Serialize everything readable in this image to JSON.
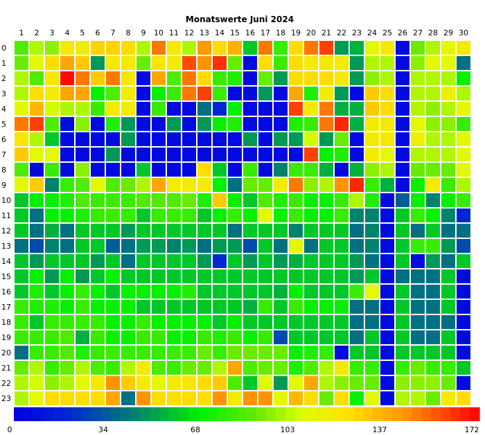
{
  "chart_data": {
    "type": "heatmap",
    "title": "Monatswerte Juni 2024",
    "x": [
      1,
      2,
      3,
      4,
      5,
      6,
      7,
      8,
      9,
      10,
      11,
      12,
      13,
      14,
      15,
      16,
      17,
      18,
      19,
      20,
      21,
      22,
      23,
      24,
      25,
      26,
      27,
      28,
      29,
      30
    ],
    "y": [
      0,
      1,
      2,
      3,
      4,
      5,
      6,
      7,
      8,
      9,
      10,
      11,
      12,
      13,
      14,
      15,
      16,
      17,
      18,
      19,
      20,
      21,
      22,
      23
    ],
    "value_range": [
      0,
      172
    ],
    "colorbar_ticks": [
      0,
      34,
      68,
      103,
      137,
      172
    ],
    "grid": true,
    "values": [
      [
        85,
        100,
        95,
        120,
        118,
        128,
        128,
        125,
        100,
        150,
        120,
        100,
        143,
        125,
        137,
        60,
        150,
        80,
        125,
        150,
        160,
        50,
        55,
        110,
        120,
        5,
        90,
        100,
        110,
        118
      ],
      [
        90,
        110,
        125,
        140,
        130,
        50,
        120,
        118,
        90,
        120,
        118,
        158,
        145,
        163,
        90,
        5,
        125,
        80,
        125,
        118,
        120,
        118,
        50,
        100,
        100,
        5,
        95,
        110,
        110,
        40
      ],
      [
        100,
        85,
        120,
        170,
        150,
        130,
        150,
        120,
        5,
        140,
        85,
        150,
        125,
        80,
        75,
        5,
        90,
        50,
        125,
        125,
        125,
        120,
        50,
        95,
        100,
        5,
        100,
        100,
        100,
        70
      ],
      [
        100,
        125,
        118,
        140,
        140,
        70,
        85,
        118,
        5,
        70,
        80,
        150,
        160,
        80,
        5,
        5,
        50,
        5,
        140,
        75,
        118,
        50,
        5,
        130,
        125,
        5,
        100,
        100,
        115,
        100
      ],
      [
        110,
        135,
        105,
        100,
        100,
        80,
        118,
        118,
        5,
        80,
        5,
        5,
        40,
        20,
        70,
        5,
        5,
        5,
        160,
        118,
        150,
        55,
        55,
        130,
        125,
        5,
        100,
        95,
        100,
        110
      ],
      [
        150,
        160,
        85,
        5,
        95,
        5,
        75,
        50,
        5,
        5,
        50,
        5,
        50,
        70,
        75,
        5,
        5,
        5,
        75,
        80,
        150,
        165,
        55,
        118,
        120,
        5,
        110,
        95,
        95,
        80
      ],
      [
        120,
        100,
        60,
        5,
        5,
        5,
        5,
        50,
        5,
        5,
        5,
        5,
        5,
        5,
        5,
        50,
        5,
        50,
        50,
        105,
        50,
        90,
        5,
        118,
        120,
        5,
        115,
        100,
        100,
        110
      ],
      [
        130,
        110,
        110,
        5,
        5,
        5,
        50,
        5,
        5,
        5,
        5,
        5,
        5,
        5,
        5,
        5,
        5,
        5,
        5,
        160,
        70,
        75,
        5,
        118,
        110,
        5,
        100,
        100,
        100,
        110
      ],
      [
        85,
        5,
        80,
        5,
        95,
        5,
        5,
        5,
        60,
        5,
        5,
        5,
        125,
        60,
        5,
        80,
        5,
        45,
        80,
        80,
        55,
        5,
        55,
        95,
        100,
        5,
        90,
        90,
        90,
        110
      ],
      [
        110,
        130,
        45,
        80,
        85,
        110,
        85,
        90,
        100,
        140,
        118,
        118,
        118,
        70,
        40,
        90,
        90,
        118,
        150,
        95,
        100,
        145,
        165,
        80,
        55,
        5,
        70,
        118,
        80,
        100
      ],
      [
        60,
        70,
        70,
        75,
        85,
        80,
        80,
        80,
        85,
        85,
        85,
        90,
        75,
        130,
        70,
        60,
        85,
        75,
        80,
        70,
        70,
        80,
        100,
        75,
        5,
        35,
        70,
        45,
        70,
        80
      ],
      [
        60,
        40,
        70,
        70,
        75,
        80,
        80,
        80,
        60,
        80,
        80,
        80,
        60,
        70,
        80,
        70,
        110,
        70,
        80,
        70,
        70,
        80,
        45,
        45,
        5,
        60,
        80,
        70,
        45,
        20
      ],
      [
        60,
        40,
        55,
        40,
        60,
        60,
        60,
        50,
        60,
        60,
        60,
        60,
        60,
        60,
        40,
        60,
        60,
        60,
        45,
        60,
        60,
        60,
        40,
        45,
        5,
        60,
        40,
        60,
        40,
        40
      ],
      [
        40,
        30,
        45,
        40,
        60,
        60,
        35,
        40,
        50,
        50,
        45,
        50,
        40,
        50,
        50,
        30,
        60,
        40,
        110,
        40,
        60,
        60,
        40,
        45,
        5,
        60,
        80,
        80,
        50,
        30
      ],
      [
        60,
        50,
        60,
        60,
        60,
        50,
        60,
        40,
        60,
        60,
        60,
        60,
        50,
        20,
        60,
        50,
        60,
        50,
        55,
        60,
        60,
        60,
        50,
        40,
        5,
        60,
        5,
        50,
        40,
        60
      ],
      [
        60,
        70,
        50,
        70,
        50,
        60,
        70,
        60,
        60,
        60,
        60,
        60,
        60,
        60,
        60,
        60,
        60,
        60,
        60,
        60,
        60,
        60,
        50,
        60,
        5,
        40,
        40,
        40,
        60,
        5
      ],
      [
        60,
        75,
        60,
        70,
        80,
        70,
        60,
        70,
        70,
        70,
        70,
        75,
        60,
        60,
        60,
        60,
        60,
        55,
        70,
        60,
        60,
        60,
        80,
        110,
        5,
        60,
        40,
        40,
        60,
        5
      ],
      [
        80,
        75,
        75,
        70,
        80,
        70,
        70,
        70,
        60,
        60,
        60,
        60,
        60,
        60,
        60,
        55,
        80,
        60,
        80,
        70,
        70,
        70,
        40,
        40,
        5,
        60,
        40,
        40,
        60,
        5
      ],
      [
        80,
        60,
        80,
        80,
        80,
        80,
        70,
        70,
        80,
        70,
        70,
        70,
        70,
        60,
        70,
        60,
        60,
        60,
        60,
        60,
        60,
        60,
        40,
        40,
        5,
        60,
        40,
        40,
        40,
        5
      ],
      [
        80,
        80,
        80,
        85,
        55,
        80,
        70,
        70,
        80,
        80,
        70,
        70,
        80,
        75,
        80,
        70,
        80,
        30,
        60,
        60,
        60,
        60,
        40,
        60,
        5,
        60,
        40,
        40,
        60,
        5
      ],
      [
        40,
        80,
        80,
        85,
        75,
        80,
        80,
        80,
        80,
        80,
        80,
        80,
        90,
        80,
        90,
        90,
        90,
        90,
        70,
        75,
        80,
        5,
        60,
        60,
        5,
        60,
        60,
        60,
        60,
        5
      ],
      [
        90,
        100,
        80,
        90,
        100,
        85,
        80,
        100,
        118,
        85,
        80,
        90,
        90,
        100,
        140,
        85,
        90,
        90,
        75,
        85,
        100,
        120,
        80,
        80,
        5,
        80,
        90,
        80,
        80,
        60
      ],
      [
        100,
        105,
        95,
        100,
        110,
        120,
        145,
        130,
        118,
        110,
        120,
        120,
        125,
        130,
        85,
        60,
        110,
        50,
        110,
        140,
        100,
        95,
        90,
        90,
        5,
        95,
        95,
        95,
        90,
        5
      ],
      [
        100,
        110,
        125,
        125,
        125,
        125,
        140,
        40,
        145,
        125,
        125,
        125,
        125,
        145,
        118,
        145,
        145,
        110,
        135,
        125,
        90,
        125,
        70,
        110,
        5,
        100,
        100,
        90,
        118,
        125
      ]
    ]
  }
}
